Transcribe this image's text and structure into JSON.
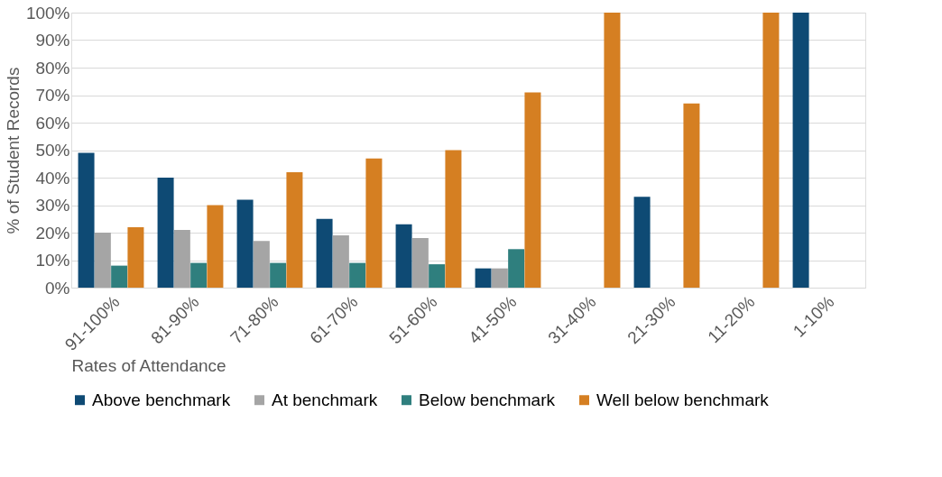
{
  "chart_data": {
    "type": "bar",
    "ylabel": "% of Student Records",
    "xlabel": "Rates of Attendance",
    "categories": [
      "91-100%",
      "81-90%",
      "71-80%",
      "61-70%",
      "51-60%",
      "41-50%",
      "31-40%",
      "21-30%",
      "11-20%",
      "1-10%"
    ],
    "series": [
      {
        "name": "Above benchmark",
        "color": "#0e4a74",
        "values": [
          49,
          40,
          32,
          25,
          23,
          7,
          null,
          33,
          null,
          100
        ]
      },
      {
        "name": "At benchmark",
        "color": "#a5a5a5",
        "values": [
          20,
          21,
          17,
          19,
          18,
          7,
          null,
          null,
          null,
          null
        ]
      },
      {
        "name": "Below benchmark",
        "color": "#2f7f7e",
        "values": [
          8,
          9,
          9,
          9,
          8.5,
          14,
          null,
          null,
          null,
          null
        ]
      },
      {
        "name": "Well below benchmark",
        "color": "#d57f22",
        "values": [
          22,
          30,
          42,
          47,
          50,
          71,
          100,
          67,
          100,
          null
        ]
      }
    ],
    "ylim": [
      0,
      100
    ],
    "yticks": [
      {
        "value": 0,
        "label": "0%"
      },
      {
        "value": 10,
        "label": "10%"
      },
      {
        "value": 20,
        "label": "20%"
      },
      {
        "value": 30,
        "label": "30%"
      },
      {
        "value": 40,
        "label": "40%"
      },
      {
        "value": 50,
        "label": "50%"
      },
      {
        "value": 60,
        "label": "60%"
      },
      {
        "value": 70,
        "label": "70%"
      },
      {
        "value": 80,
        "label": "80%"
      },
      {
        "value": 90,
        "label": "90%"
      },
      {
        "value": 100,
        "label": "100%"
      }
    ],
    "grid": "y",
    "legend": "bottom"
  }
}
